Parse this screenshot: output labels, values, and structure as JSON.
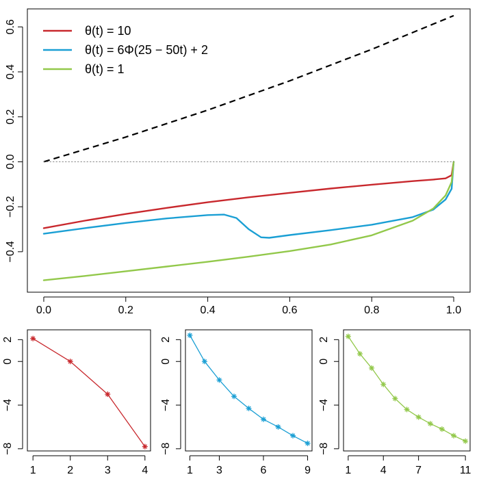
{
  "chart_data": [
    {
      "type": "line",
      "xlim": [
        -0.04,
        1.04
      ],
      "ylim": [
        -0.58,
        0.68
      ],
      "x_ticks": [
        "0.0",
        "0.2",
        "0.4",
        "0.6",
        "0.8",
        "1.0"
      ],
      "y_ticks": [
        "-0.4",
        "-0.2",
        "0.0",
        "0.2",
        "0.4",
        "0.6"
      ],
      "legend_position": "top-left",
      "series": [
        {
          "name": "θ(t) = 10",
          "color": "#c8282d",
          "style": "solid",
          "x": [
            0,
            0.1,
            0.2,
            0.3,
            0.4,
            0.5,
            0.6,
            0.7,
            0.8,
            0.9,
            0.95,
            0.98,
            0.995,
            1.0
          ],
          "y": [
            -0.295,
            -0.262,
            -0.232,
            -0.205,
            -0.18,
            -0.158,
            -0.138,
            -0.119,
            -0.102,
            -0.086,
            -0.079,
            -0.074,
            -0.06,
            0.0
          ]
        },
        {
          "name": "θ(t) = 6Φ(25 − 50t) + 2",
          "color": "#1a9fd4",
          "style": "solid",
          "x": [
            0,
            0.1,
            0.2,
            0.3,
            0.4,
            0.44,
            0.47,
            0.5,
            0.53,
            0.55,
            0.6,
            0.7,
            0.8,
            0.9,
            0.95,
            0.98,
            0.995,
            1.0
          ],
          "y": [
            -0.32,
            -0.295,
            -0.272,
            -0.252,
            -0.237,
            -0.235,
            -0.25,
            -0.3,
            -0.336,
            -0.338,
            -0.326,
            -0.304,
            -0.28,
            -0.246,
            -0.213,
            -0.168,
            -0.12,
            0.0
          ],
          "dots": false
        },
        {
          "name": "θ(t) = 1",
          "color": "#92c84a",
          "style": "solid",
          "x": [
            0,
            0.1,
            0.2,
            0.3,
            0.4,
            0.5,
            0.6,
            0.7,
            0.8,
            0.9,
            0.95,
            0.98,
            0.995,
            1.0
          ],
          "y": [
            -0.527,
            -0.508,
            -0.487,
            -0.466,
            -0.445,
            -0.422,
            -0.397,
            -0.368,
            -0.327,
            -0.262,
            -0.208,
            -0.15,
            -0.09,
            0.0
          ]
        },
        {
          "color": "#000000",
          "style": "dashed",
          "x": [
            0,
            0.2,
            0.4,
            0.6,
            0.8,
            1.0
          ],
          "y": [
            0.0,
            0.11,
            0.23,
            0.36,
            0.5,
            0.65
          ]
        },
        {
          "color": "#808080",
          "style": "dotted",
          "x": [
            0,
            1.0
          ],
          "y": [
            0.0,
            0.0
          ]
        }
      ]
    },
    {
      "type": "line",
      "markers": "asterisk",
      "xlim": [
        0.85,
        4.15
      ],
      "ylim": [
        -8.2,
        2.9
      ],
      "x_ticks": [
        "1",
        "2",
        "3",
        "4"
      ],
      "y_ticks": [
        "-8",
        "-4",
        "0",
        "2"
      ],
      "series": [
        {
          "color": "#c8282d",
          "x": [
            1,
            2,
            3,
            4
          ],
          "y": [
            2.1,
            0.0,
            -3.0,
            -7.8
          ]
        }
      ]
    },
    {
      "type": "line",
      "markers": "asterisk",
      "xlim": [
        0.7,
        9.3
      ],
      "ylim": [
        -8.2,
        2.9
      ],
      "x_ticks": [
        "1",
        "3",
        "6",
        "9"
      ],
      "y_ticks": [
        "-8",
        "-4",
        "0",
        "2"
      ],
      "series": [
        {
          "color": "#1a9fd4",
          "x": [
            1,
            2,
            3,
            4,
            5,
            6,
            7,
            8,
            9
          ],
          "y": [
            2.4,
            0.0,
            -1.7,
            -3.2,
            -4.3,
            -5.3,
            -6.0,
            -6.8,
            -7.5
          ]
        }
      ]
    },
    {
      "type": "line",
      "markers": "asterisk",
      "xlim": [
        0.6,
        11.4
      ],
      "ylim": [
        -8.2,
        2.9
      ],
      "x_ticks": [
        "1",
        "4",
        "7",
        "11"
      ],
      "y_ticks": [
        "-8",
        "-4",
        "0",
        "2"
      ],
      "series": [
        {
          "color": "#92c84a",
          "x": [
            1,
            2,
            3,
            4,
            5,
            6,
            7,
            8,
            9,
            10,
            11
          ],
          "y": [
            2.3,
            0.7,
            -0.6,
            -2.1,
            -3.4,
            -4.4,
            -5.1,
            -5.7,
            -6.2,
            -6.8,
            -7.3
          ]
        }
      ]
    }
  ]
}
